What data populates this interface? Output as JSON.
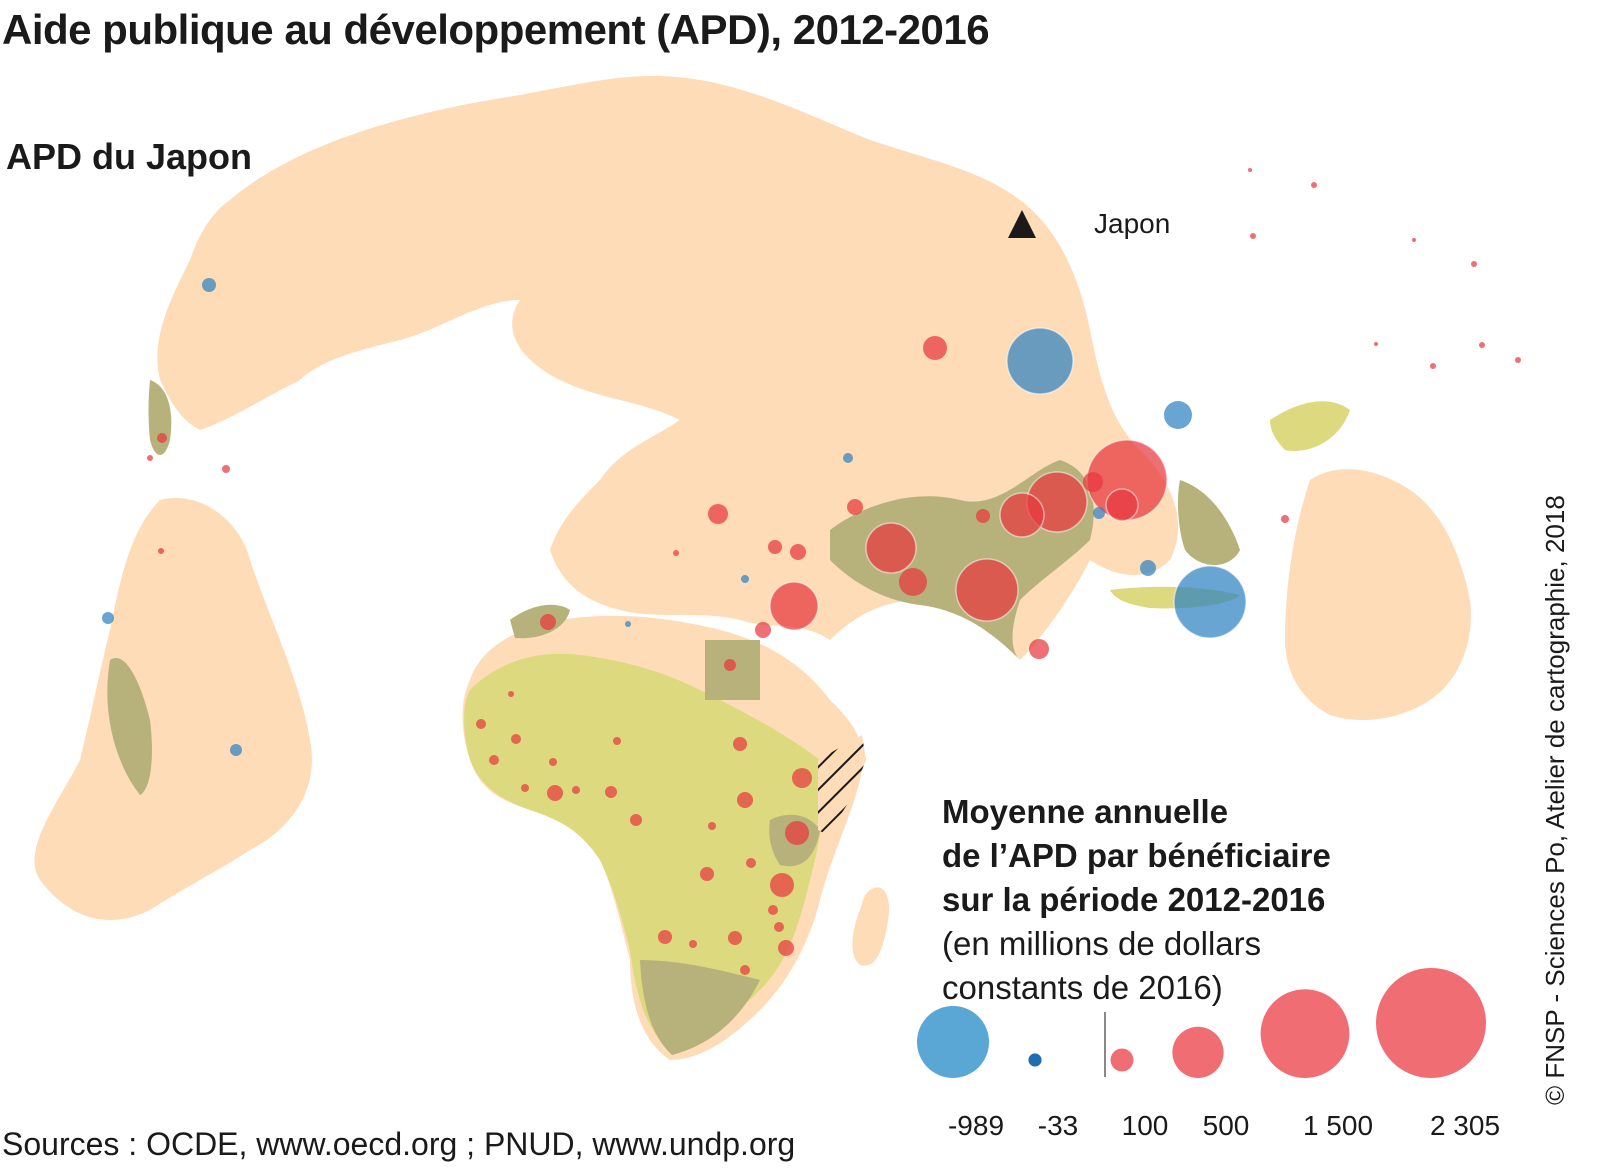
{
  "title": "Aide publique au développement (APD), 2012-2016",
  "subtitle": "APD du Japon",
  "donor_marker_label": "Japon",
  "legend": {
    "title_lines": [
      "Moyenne annuelle",
      "de l’APD par bénéficiaire",
      "sur la période 2012-2016"
    ],
    "note_lines": [
      "(en millions de dollars",
      "constants de 2016)"
    ],
    "items": [
      {
        "label": "-989",
        "value": -989,
        "color": "#5aa7d6"
      },
      {
        "label": "-33",
        "value": -33,
        "color": "#1f6fb0"
      },
      {
        "label": "100",
        "value": 100,
        "color": "#f06e73"
      },
      {
        "label": "500",
        "value": 500,
        "color": "#f06e73"
      },
      {
        "label": "1 500",
        "value": 1500,
        "color": "#f06e73"
      },
      {
        "label": "2 305",
        "value": 2305,
        "color": "#f06e73"
      }
    ]
  },
  "colors": {
    "land": "#fddcb7",
    "recipient_light": "#dcd97f",
    "recipient_dark": "#b7b27c",
    "positive": "#e8383f",
    "negative": "#2e82c0"
  },
  "sources": "Sources : OCDE, www.oecd.org ; PNUD, www.undp.org",
  "credit": "© FNSP - Sciences Po, Atelier de cartographie, 2018"
}
